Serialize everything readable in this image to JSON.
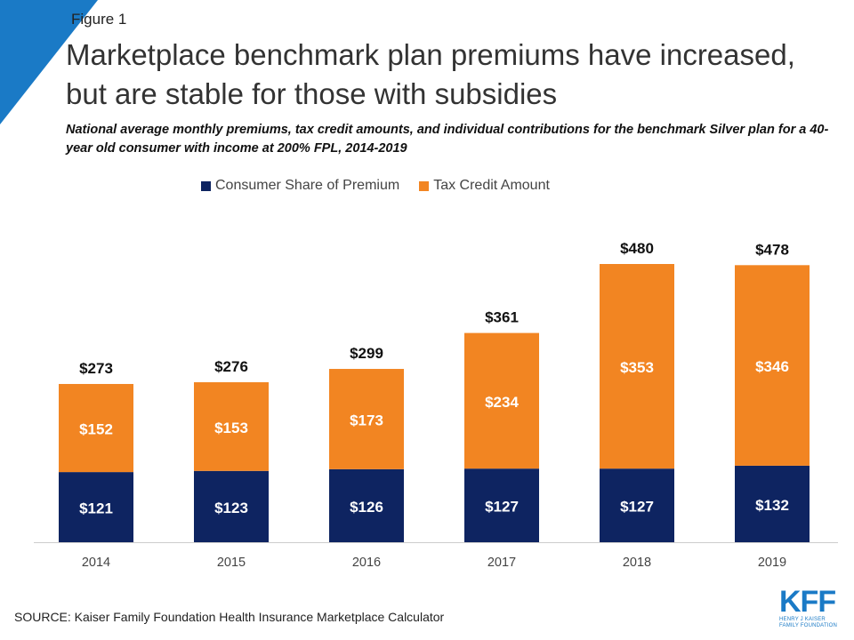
{
  "figure_label": "Figure 1",
  "title": "Marketplace benchmark plan premiums have increased, but are stable for those with subsidies",
  "subtitle": "National average monthly premiums, tax credit amounts, and individual contributions for the benchmark Silver plan for a 40-year old consumer with income at 200% FPL, 2014-2019",
  "source": "SOURCE: Kaiser Family Foundation Health Insurance Marketplace Calculator",
  "logo": {
    "mark": "KFF",
    "line1": "HENRY J KAISER",
    "line2": "FAMILY FOUNDATION"
  },
  "colors": {
    "consumer": "#0e2461",
    "tax_credit": "#f28522",
    "accent": "#1a7ac6"
  },
  "chart_data": {
    "type": "bar",
    "stacked": true,
    "categories": [
      "2014",
      "2015",
      "2016",
      "2017",
      "2018",
      "2019"
    ],
    "series": [
      {
        "name": "Consumer Share of Premium",
        "values": [
          121,
          123,
          126,
          127,
          127,
          132
        ],
        "labels": [
          "$121",
          "$123",
          "$126",
          "$127",
          "$127",
          "$132"
        ]
      },
      {
        "name": "Tax Credit Amount",
        "values": [
          152,
          153,
          173,
          234,
          353,
          346
        ],
        "labels": [
          "$152",
          "$153",
          "$173",
          "$234",
          "$353",
          "$346"
        ]
      }
    ],
    "totals": [
      "$273",
      "$276",
      "$299",
      "$361",
      "$480",
      "$478"
    ],
    "ylim": [
      0,
      480
    ],
    "legend_position": "top",
    "grid": false
  }
}
